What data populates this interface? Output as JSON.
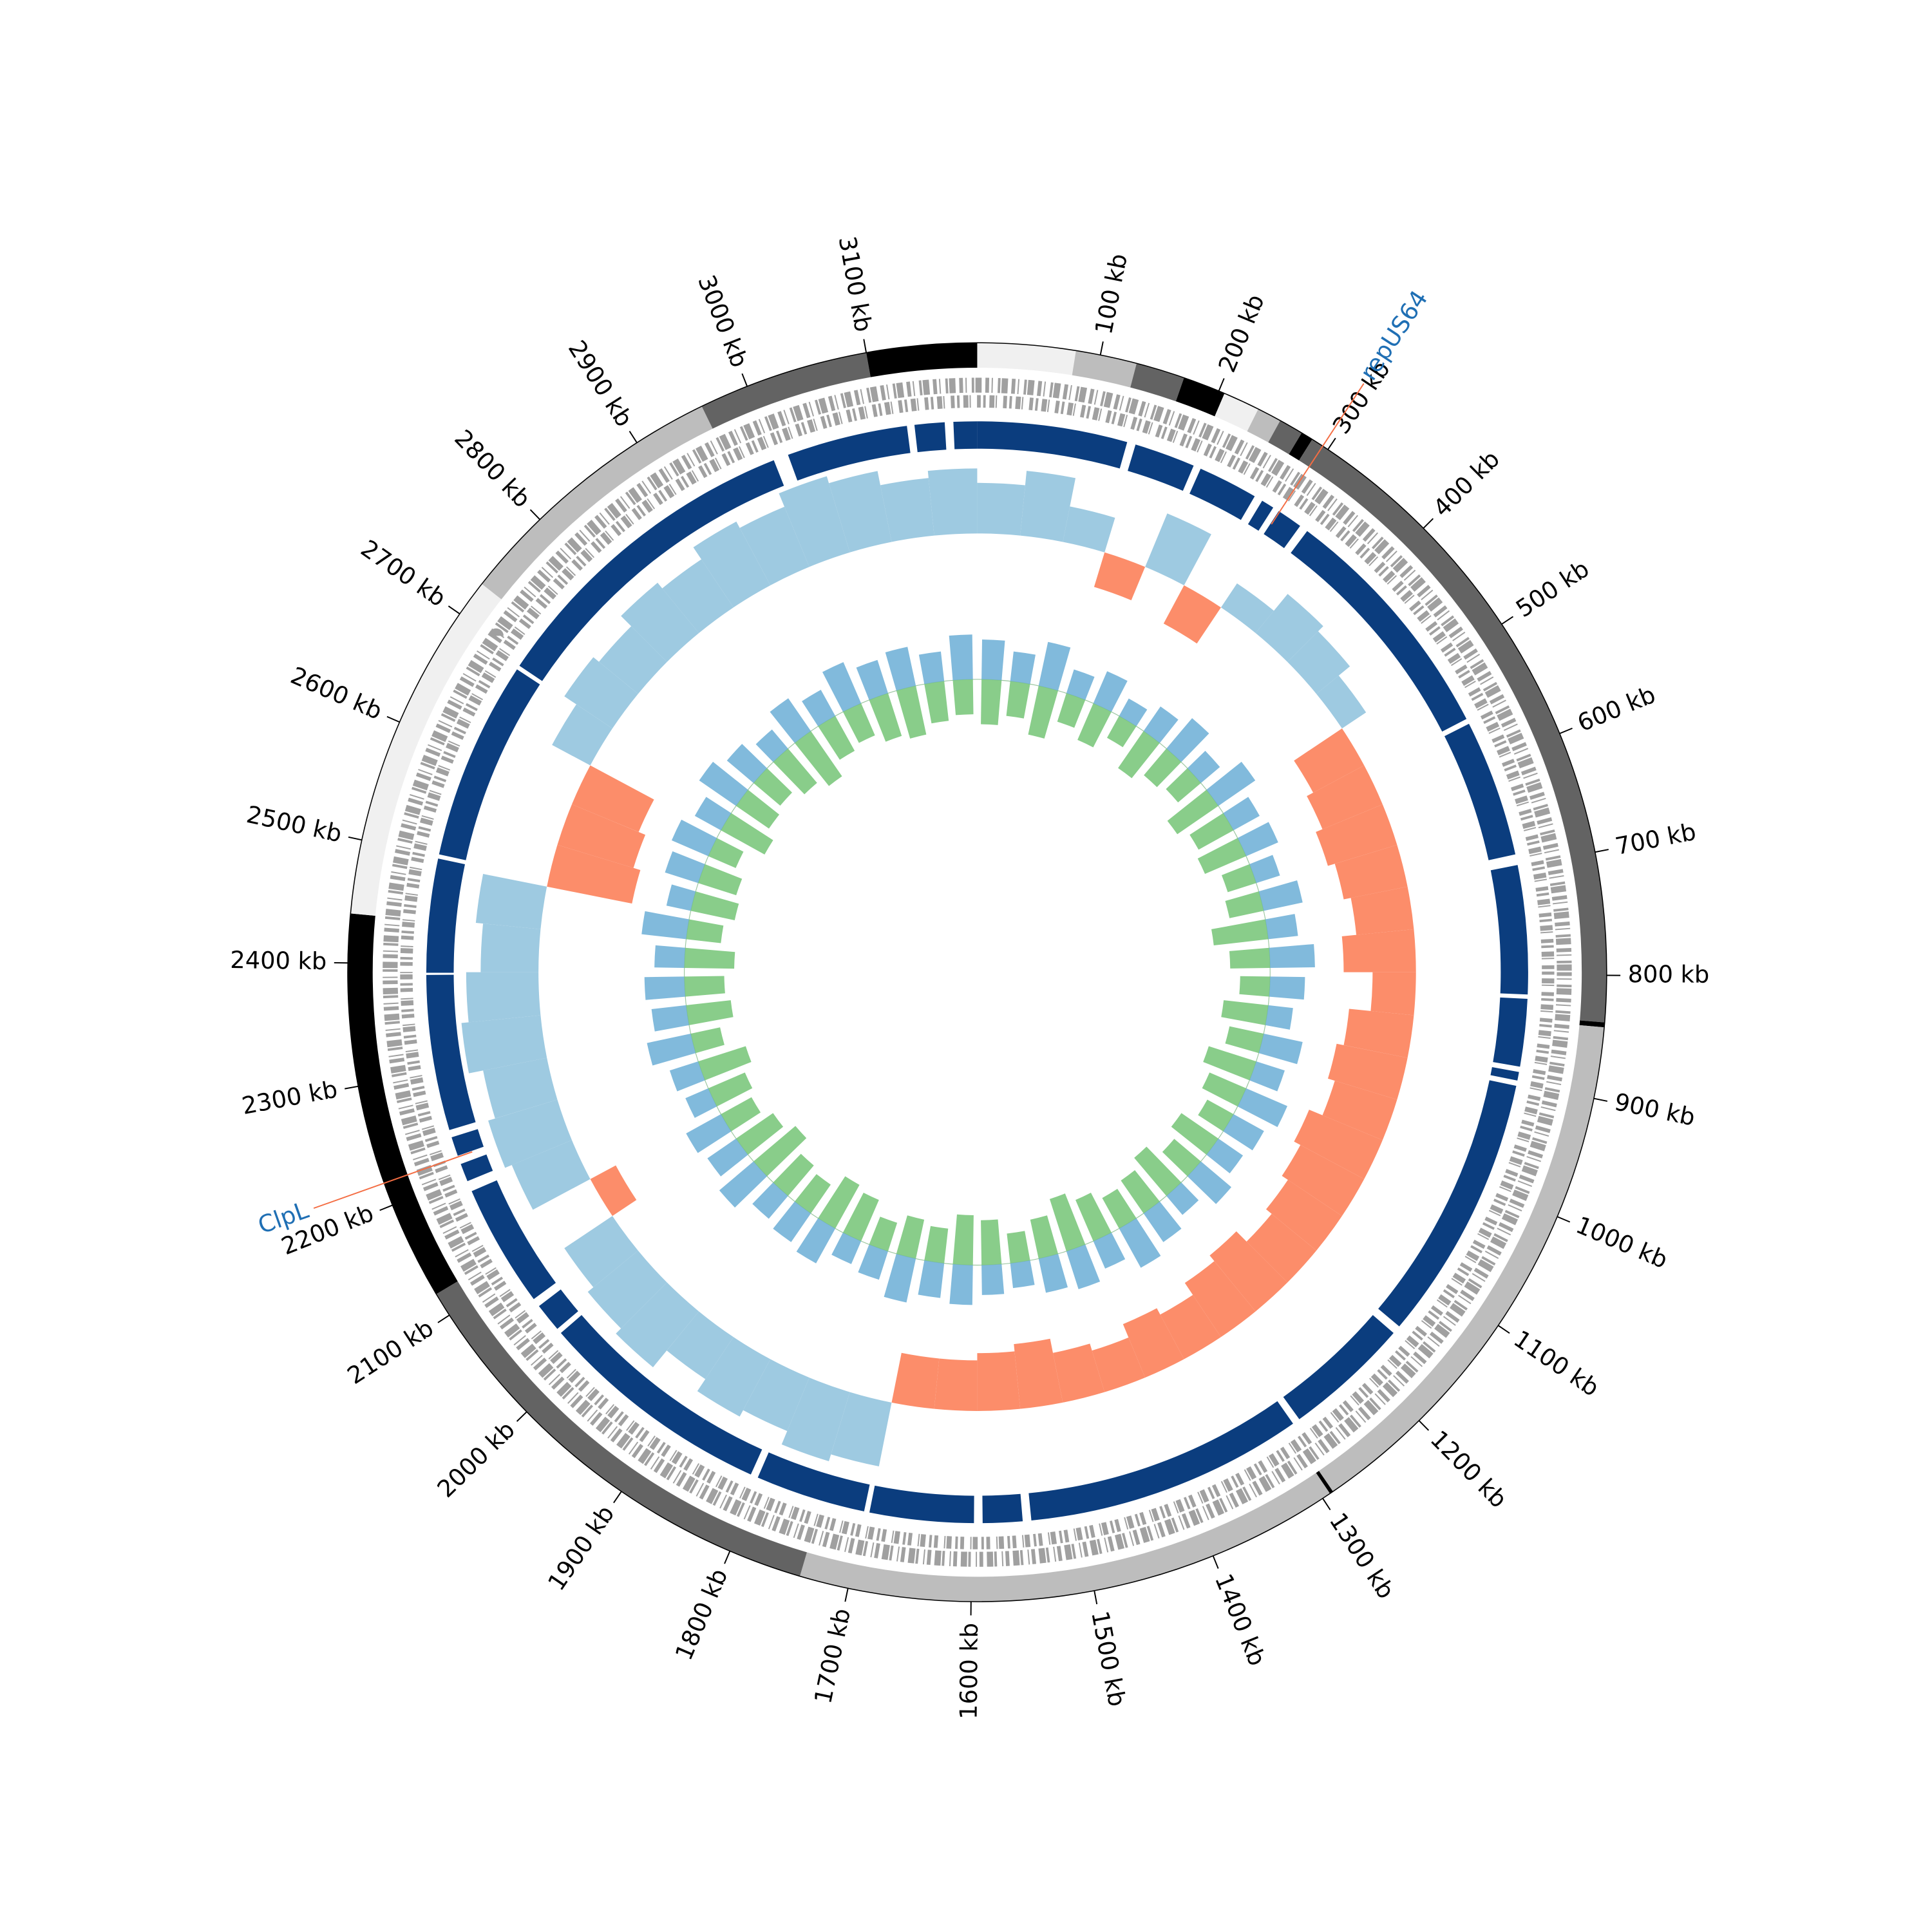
{
  "chart_data": {
    "type": "circos",
    "xlim": [
      0,
      3190
    ],
    "xticks": [
      {
        "value": 100,
        "label": "100 kb"
      },
      {
        "value": 200,
        "label": "200 kb"
      },
      {
        "value": 300,
        "label": "300 kb"
      },
      {
        "value": 400,
        "label": "400 kb"
      },
      {
        "value": 500,
        "label": "500 kb"
      },
      {
        "value": 600,
        "label": "600 kb"
      },
      {
        "value": 700,
        "label": "700 kb"
      },
      {
        "value": 800,
        "label": "800 kb"
      },
      {
        "value": 900,
        "label": "900 kb"
      },
      {
        "value": 1000,
        "label": "1000 kb"
      },
      {
        "value": 1100,
        "label": "1100 kb"
      },
      {
        "value": 1200,
        "label": "1200 kb"
      },
      {
        "value": 1300,
        "label": "1300 kb"
      },
      {
        "value": 1400,
        "label": "1400 kb"
      },
      {
        "value": 1500,
        "label": "1500 kb"
      },
      {
        "value": 1600,
        "label": "1600 kb"
      },
      {
        "value": 1700,
        "label": "1700 kb"
      },
      {
        "value": 1800,
        "label": "1800 kb"
      },
      {
        "value": 1900,
        "label": "1900 kb"
      },
      {
        "value": 2000,
        "label": "2000 kb"
      },
      {
        "value": 2100,
        "label": "2100 kb"
      },
      {
        "value": 2200,
        "label": "2200 kb"
      },
      {
        "value": 2300,
        "label": "2300 kb"
      },
      {
        "value": 2400,
        "label": "2400 kb"
      },
      {
        "value": 2500,
        "label": "2500 kb"
      },
      {
        "value": 2600,
        "label": "2600 kb"
      },
      {
        "value": 2700,
        "label": "2700 kb"
      },
      {
        "value": 2800,
        "label": "2800 kb"
      },
      {
        "value": 2900,
        "label": "2900 kb"
      },
      {
        "value": 3000,
        "label": "3000 kb"
      },
      {
        "value": 3100,
        "label": "3100 kb"
      }
    ],
    "contigs": [
      {
        "start": 0,
        "end": 80,
        "color": "#f0f0f0"
      },
      {
        "start": 80,
        "end": 130,
        "color": "#bdbdbd"
      },
      {
        "start": 130,
        "end": 170,
        "color": "#636363"
      },
      {
        "start": 170,
        "end": 205,
        "color": "#000000"
      },
      {
        "start": 205,
        "end": 235,
        "color": "#f0f0f0"
      },
      {
        "start": 235,
        "end": 255,
        "color": "#bdbdbd"
      },
      {
        "start": 255,
        "end": 275,
        "color": "#636363"
      },
      {
        "start": 275,
        "end": 285,
        "color": "#000000"
      },
      {
        "start": 285,
        "end": 838,
        "color": "#636363"
      },
      {
        "start": 838,
        "end": 842,
        "color": "#000000"
      },
      {
        "start": 842,
        "end": 1290,
        "color": "#bdbdbd"
      },
      {
        "start": 1290,
        "end": 1293,
        "color": "#000000"
      },
      {
        "start": 1293,
        "end": 1740,
        "color": "#bdbdbd"
      },
      {
        "start": 1740,
        "end": 2120,
        "color": "#636363"
      },
      {
        "start": 2120,
        "end": 2440,
        "color": "#000000"
      },
      {
        "start": 2440,
        "end": 2730,
        "color": "#f0f0f0"
      },
      {
        "start": 2730,
        "end": 2960,
        "color": "#bdbdbd"
      },
      {
        "start": 2960,
        "end": 3100,
        "color": "#636363"
      },
      {
        "start": 3100,
        "end": 3190,
        "color": "#000000"
      }
    ],
    "blocks": {
      "color": "#0b3d7e",
      "segments": [
        [
          0,
          140
        ],
        [
          148,
          205
        ],
        [
          212,
          268
        ],
        [
          276,
          288
        ],
        [
          294,
          318
        ],
        [
          326,
          555
        ],
        [
          560,
          688
        ],
        [
          698,
          818
        ],
        [
          822,
          885
        ],
        [
          890,
          898
        ],
        [
          903,
          1152
        ],
        [
          1160,
          1278
        ],
        [
          1285,
          1545
        ],
        [
          1553,
          1590
        ],
        [
          1598,
          1695
        ],
        [
          1700,
          1803
        ],
        [
          1810,
          2030
        ],
        [
          2035,
          2062
        ],
        [
          2070,
          2185
        ],
        [
          2195,
          2212
        ],
        [
          2220,
          2238
        ],
        [
          2245,
          2390
        ],
        [
          2392,
          2498
        ],
        [
          2502,
          2688
        ],
        [
          2692,
          2998
        ],
        [
          3012,
          3125
        ],
        [
          3132,
          3160
        ],
        [
          3168,
          3190
        ]
      ]
    },
    "gc": {
      "pos_color": "#9ecae1",
      "neg_color": "#fc8d6a",
      "values": [
        0.7,
        0.9,
        0.5,
        -0.5,
        0.8,
        -0.6,
        0.4,
        0.7,
        0.6,
        0.4,
        -0.8,
        -0.9,
        -1.0,
        -0.9,
        -0.8,
        -1.0,
        -0.6,
        -0.9,
        -1.0,
        -0.9,
        -1.1,
        -1.0,
        -0.9,
        -0.8,
        -1.0,
        -0.9,
        -0.7,
        -0.8,
        -0.6,
        -0.7,
        -0.9,
        -0.8,
        -0.7,
        -0.7,
        0.9,
        1.0,
        0.8,
        0.9,
        0.7,
        1.0,
        0.9,
        0.8,
        -0.4,
        0.9,
        1.0,
        0.9,
        1.1,
        1.0,
        0.8,
        0.9,
        -1.2,
        -1.1,
        -1.0,
        0.6,
        0.8,
        0.7,
        0.9,
        0.8,
        1.0,
        0.9,
        1.1,
        1.0,
        0.8,
        0.9
      ]
    },
    "skew": [
      {
        "color": "#6baed6",
        "values": [
          0.8,
          0.6,
          0.9,
          0.5,
          0.7,
          0.4,
          0.6,
          0.8,
          0.5,
          0.9,
          0.6,
          0.7,
          0.5,
          0.8,
          0.6,
          0.9,
          0.7,
          0.5,
          0.8,
          0.6,
          0.9,
          0.7,
          0.6,
          0.8,
          0.5,
          0.7,
          0.9,
          0.6,
          0.8,
          0.7,
          0.5,
          0.6,
          0.8,
          0.7,
          0.9,
          0.6,
          0.5,
          0.8,
          0.7,
          0.6,
          0.9,
          0.7,
          0.8,
          0.5,
          0.6,
          0.9,
          0.7,
          0.8,
          0.6,
          0.9,
          0.5,
          0.7,
          0.8,
          0.6,
          0.9,
          0.7,
          0.5,
          0.8,
          0.6,
          0.9,
          0.7,
          0.8,
          0.6,
          0.9
        ]
      },
      {
        "color": "#74c476",
        "values": [
          0.9,
          0.7,
          1.0,
          0.6,
          0.8,
          0.5,
          0.9,
          0.7,
          0.6,
          1.0,
          0.8,
          0.9,
          0.6,
          0.7,
          1.1,
          0.8,
          0.6,
          0.9,
          0.7,
          1.0,
          0.8,
          0.6,
          0.9,
          0.7,
          1.0,
          0.8,
          0.7,
          0.9,
          1.1,
          0.8,
          0.6,
          0.9,
          1.0,
          0.7,
          0.8,
          0.6,
          0.9,
          1.0,
          0.7,
          0.8,
          1.1,
          0.9,
          0.7,
          0.8,
          1.0,
          0.6,
          0.9,
          0.8,
          1.0,
          0.7,
          0.9,
          0.8,
          0.6,
          1.0,
          0.8,
          0.7,
          0.9,
          1.1,
          0.8,
          0.7,
          0.9,
          1.0,
          0.8,
          0.7
        ]
      }
    ],
    "annotations": {
      "label_color": "#1f6fb4",
      "line_color": "#f46d43",
      "items": [
        {
          "label": "repUS64",
          "position": 295
        },
        {
          "label": "ClpL",
          "position": 2219
        }
      ]
    }
  }
}
